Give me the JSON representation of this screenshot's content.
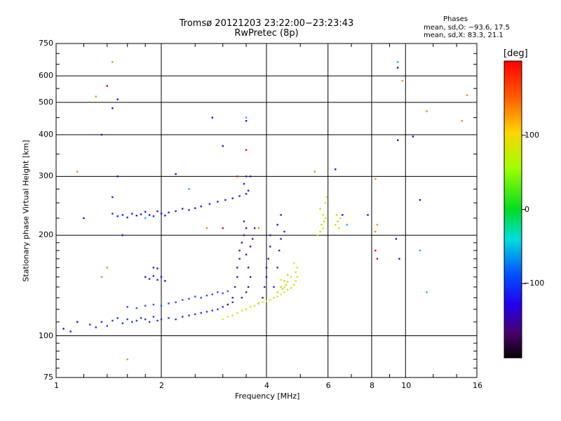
{
  "title": {
    "line1": "Tromsø 20121203 23:22:00−23:23:43",
    "line2": "RwPretec (8p)"
  },
  "stats": {
    "heading": "Phases",
    "o_line": "mean, sd,O: −93.6, 17.5",
    "x_line": "mean, sd,X:  83.3, 21.1"
  },
  "colorbar": {
    "unit": "[deg]",
    "range": [
      -200,
      200
    ],
    "ticks": [
      "100",
      "0",
      "−100"
    ],
    "tick_values": [
      100,
      0,
      -100
    ]
  },
  "chart_data": {
    "type": "scatter",
    "xlabel": "Frequency [MHz]",
    "ylabel": "Stationary phase Virtual Height [km]",
    "xscale": "log",
    "yscale": "log",
    "xlim": [
      1,
      16
    ],
    "ylim": [
      75,
      750
    ],
    "xticks": [
      1,
      2,
      4,
      6,
      8,
      10,
      16
    ],
    "yticks": [
      75,
      100,
      200,
      300,
      400,
      500,
      600,
      750
    ],
    "grid": true,
    "series": [
      {
        "points": [
          [
            1.45,
            232
          ],
          [
            1.5,
            228
          ],
          [
            1.55,
            230
          ],
          [
            1.6,
            226
          ],
          [
            1.65,
            232
          ],
          [
            1.7,
            229
          ],
          [
            1.75,
            231
          ],
          [
            1.8,
            235
          ],
          [
            1.85,
            230
          ],
          [
            1.9,
            228
          ],
          [
            1.95,
            236
          ],
          [
            2.0,
            232
          ],
          [
            2.05,
            229
          ],
          [
            2.1,
            234
          ],
          [
            2.2,
            236
          ],
          [
            2.3,
            240
          ],
          [
            2.4,
            238
          ],
          [
            2.5,
            241
          ],
          [
            2.6,
            244
          ],
          [
            2.75,
            248
          ],
          [
            2.9,
            252
          ],
          [
            3.05,
            255
          ],
          [
            3.2,
            258
          ],
          [
            3.35,
            262
          ],
          [
            3.5,
            266
          ],
          [
            3.55,
            272
          ],
          [
            3.45,
            285
          ],
          [
            3.5,
            300
          ]
        ],
        "color": "#1a1aff"
      },
      {
        "points": [
          [
            1.25,
            108
          ],
          [
            1.3,
            106
          ],
          [
            1.35,
            110
          ],
          [
            1.4,
            107
          ],
          [
            1.45,
            111
          ],
          [
            1.5,
            113
          ],
          [
            1.55,
            109
          ],
          [
            1.6,
            112
          ],
          [
            1.65,
            110
          ],
          [
            1.7,
            111
          ],
          [
            1.75,
            113
          ],
          [
            1.8,
            112
          ],
          [
            1.85,
            110
          ],
          [
            1.9,
            114
          ],
          [
            1.95,
            111
          ],
          [
            2.0,
            112
          ],
          [
            2.1,
            113
          ],
          [
            2.2,
            112
          ],
          [
            2.3,
            114
          ],
          [
            2.4,
            115
          ],
          [
            2.5,
            116
          ],
          [
            2.6,
            117
          ],
          [
            2.7,
            118
          ],
          [
            2.8,
            119
          ],
          [
            2.9,
            120
          ],
          [
            3.0,
            122
          ],
          [
            3.1,
            124
          ],
          [
            3.2,
            126
          ]
        ],
        "color": "#2233ee"
      },
      {
        "points": [
          [
            1.6,
            122
          ],
          [
            1.7,
            121
          ],
          [
            1.8,
            123
          ],
          [
            1.9,
            124
          ],
          [
            2.0,
            123
          ],
          [
            2.1,
            125
          ],
          [
            2.2,
            126
          ],
          [
            2.3,
            128
          ],
          [
            2.4,
            129
          ],
          [
            2.5,
            131
          ],
          [
            2.6,
            130
          ],
          [
            2.7,
            132
          ],
          [
            2.8,
            133
          ],
          [
            2.9,
            135
          ],
          [
            3.0,
            134
          ],
          [
            3.1,
            136
          ]
        ],
        "color": "#3344ff"
      },
      {
        "points": [
          [
            1.8,
            150
          ],
          [
            1.85,
            148
          ],
          [
            1.9,
            151
          ],
          [
            1.95,
            147
          ],
          [
            2.0,
            150
          ],
          [
            2.05,
            146
          ],
          [
            1.9,
            160
          ],
          [
            1.95,
            159
          ]
        ],
        "color": "#1a1aff"
      },
      {
        "points": [
          [
            3.1,
            124
          ],
          [
            3.2,
            130
          ],
          [
            3.25,
            140
          ],
          [
            3.3,
            150
          ],
          [
            3.3,
            160
          ],
          [
            3.35,
            170
          ],
          [
            3.35,
            180
          ],
          [
            3.4,
            190
          ],
          [
            3.45,
            200
          ],
          [
            3.5,
            210
          ],
          [
            3.45,
            220
          ],
          [
            3.4,
            130
          ],
          [
            3.5,
            135
          ],
          [
            3.55,
            140
          ],
          [
            3.6,
            150
          ],
          [
            3.55,
            160
          ],
          [
            3.5,
            175
          ],
          [
            3.6,
            185
          ],
          [
            3.65,
            195
          ],
          [
            3.7,
            210
          ],
          [
            3.8,
            125
          ],
          [
            3.9,
            130
          ],
          [
            3.95,
            140
          ],
          [
            4.0,
            150
          ],
          [
            4.0,
            160
          ],
          [
            4.05,
            170
          ],
          [
            4.1,
            185
          ],
          [
            4.1,
            200
          ]
        ],
        "color": "#4411aa"
      },
      {
        "points": [
          [
            3.0,
            112
          ],
          [
            3.1,
            114
          ],
          [
            3.2,
            115
          ],
          [
            3.3,
            117
          ],
          [
            3.4,
            119
          ],
          [
            3.5,
            120
          ],
          [
            3.6,
            122
          ],
          [
            3.7,
            123
          ],
          [
            3.8,
            125
          ],
          [
            3.9,
            126
          ],
          [
            4.0,
            127
          ],
          [
            4.1,
            128
          ],
          [
            4.2,
            130
          ],
          [
            4.3,
            131
          ],
          [
            4.4,
            133
          ],
          [
            4.5,
            135
          ],
          [
            4.6,
            137
          ],
          [
            4.7,
            139
          ],
          [
            4.8,
            142
          ],
          [
            4.85,
            146
          ],
          [
            4.9,
            150
          ],
          [
            4.85,
            155
          ],
          [
            4.9,
            160
          ],
          [
            4.8,
            165
          ],
          [
            4.7,
            150
          ],
          [
            4.6,
            145
          ],
          [
            4.5,
            140
          ],
          [
            4.4,
            147
          ]
        ],
        "color": "#e0e01a"
      },
      {
        "points": [
          [
            4.3,
            135
          ],
          [
            4.4,
            140
          ],
          [
            4.5,
            146
          ],
          [
            4.6,
            152
          ],
          [
            4.55,
            142
          ],
          [
            4.45,
            138
          ]
        ],
        "color": "#c8d60a"
      },
      {
        "points": [
          [
            5.6,
            200
          ],
          [
            5.7,
            205
          ],
          [
            5.8,
            210
          ],
          [
            5.75,
            215
          ],
          [
            5.85,
            220
          ],
          [
            5.9,
            225
          ],
          [
            5.8,
            230
          ],
          [
            5.7,
            240
          ],
          [
            5.9,
            250
          ],
          [
            5.95,
            260
          ],
          [
            6.3,
            215
          ],
          [
            6.4,
            220
          ],
          [
            6.5,
            225
          ],
          [
            6.45,
            210
          ],
          [
            6.35,
            230
          ]
        ],
        "color": "#c8e010"
      },
      {
        "points": [
          [
            4.2,
            140
          ],
          [
            4.3,
            160
          ],
          [
            4.35,
            180
          ],
          [
            4.4,
            195
          ],
          [
            4.5,
            205
          ],
          [
            4.3,
            215
          ],
          [
            4.4,
            230
          ]
        ],
        "color": "#2222dd"
      },
      {
        "points": [
          [
            1.05,
            105
          ],
          [
            1.1,
            103
          ],
          [
            1.15,
            110
          ],
          [
            1.2,
            225
          ],
          [
            1.35,
            400
          ],
          [
            1.45,
            480
          ],
          [
            1.5,
            510
          ],
          [
            1.5,
            300
          ],
          [
            1.45,
            260
          ],
          [
            1.55,
            200
          ],
          [
            2.2,
            305
          ],
          [
            2.8,
            450
          ],
          [
            3.0,
            370
          ],
          [
            3.5,
            440
          ],
          [
            3.6,
            300
          ],
          [
            6.3,
            315
          ],
          [
            6.6,
            230
          ],
          [
            7.8,
            230
          ],
          [
            9.5,
            635
          ],
          [
            9.5,
            385
          ],
          [
            10.5,
            395
          ],
          [
            11.0,
            255
          ],
          [
            9.6,
            170
          ],
          [
            9.4,
            195
          ]
        ],
        "color": "#1010ee"
      },
      {
        "points": [
          [
            1.15,
            310
          ],
          [
            1.35,
            150
          ],
          [
            1.4,
            160
          ],
          [
            1.3,
            520
          ],
          [
            1.4,
            560
          ],
          [
            1.45,
            660
          ],
          [
            1.6,
            85
          ],
          [
            2.7,
            210
          ],
          [
            3.8,
            210
          ],
          [
            5.5,
            310
          ],
          [
            9.8,
            580
          ],
          [
            11.5,
            470
          ],
          [
            14.5,
            440
          ],
          [
            15.0,
            525
          ],
          [
            8.2,
            295
          ],
          [
            8.3,
            215
          ],
          [
            8.2,
            205
          ]
        ],
        "color": "#ff8800"
      },
      {
        "points": [
          [
            3.5,
            450
          ],
          [
            9.5,
            660
          ],
          [
            11.0,
            180
          ],
          [
            11.5,
            135
          ],
          [
            2.4,
            275
          ],
          [
            1.8,
            225
          ],
          [
            6.8,
            215
          ]
        ],
        "color": "#00bbee"
      },
      {
        "points": [
          [
            1.4,
            560
          ],
          [
            3.5,
            360
          ],
          [
            3.3,
            300
          ],
          [
            8.2,
            180
          ],
          [
            8.3,
            170
          ],
          [
            3.0,
            210
          ]
        ],
        "color": "#ee1111"
      }
    ]
  }
}
